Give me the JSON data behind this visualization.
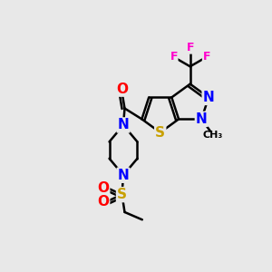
{
  "bg_color": "#e8e8e8",
  "bond_color": "#000000",
  "bond_width": 1.8,
  "atom_colors": {
    "N": "#0000ff",
    "S": "#c8a000",
    "O": "#ff0000",
    "F": "#ff00cc",
    "C": "#000000"
  },
  "font_size": 10
}
